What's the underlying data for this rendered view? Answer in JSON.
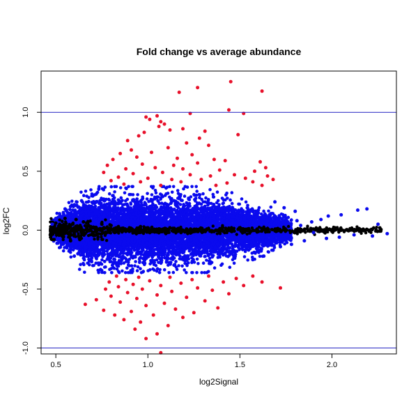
{
  "chart_data": {
    "type": "scatter",
    "title": "Fold change vs average abundance",
    "xlabel": "log2Signal",
    "ylabel": "log2FC",
    "xlim": [
      0.42,
      2.35
    ],
    "ylim": [
      -1.05,
      1.35
    ],
    "xticks": [
      {
        "value": 0.5,
        "label": "0.5"
      },
      {
        "value": 1.0,
        "label": "1.0"
      },
      {
        "value": 1.5,
        "label": "1.5"
      },
      {
        "value": 2.0,
        "label": "2.0"
      }
    ],
    "yticks": [
      {
        "value": -1.0,
        "label": "-1.0"
      },
      {
        "value": -0.5,
        "label": "-0.5"
      },
      {
        "value": 0.0,
        "label": "0.0"
      },
      {
        "value": 0.5,
        "label": "0.5"
      },
      {
        "value": 1.0,
        "label": "1.0"
      }
    ],
    "reference_lines": [
      {
        "axis": "y",
        "value": 1.0,
        "color": "#2020c0"
      },
      {
        "axis": "y",
        "value": -1.0,
        "color": "#2020c0"
      }
    ],
    "grid": false,
    "legend": "none",
    "series": [
      {
        "color": "#e8102a",
        "points": [
          [
            1.17,
            1.17
          ],
          [
            1.27,
            1.21
          ],
          [
            1.45,
            1.26
          ],
          [
            1.62,
            1.18
          ],
          [
            1.44,
            1.02
          ],
          [
            1.52,
            0.99
          ],
          [
            1.23,
            0.99
          ],
          [
            1.05,
            0.97
          ],
          [
            0.99,
            0.96
          ],
          [
            1.01,
            0.94
          ],
          [
            1.07,
            0.92
          ],
          [
            1.09,
            0.9
          ],
          [
            1.06,
            0.88
          ],
          [
            1.12,
            0.85
          ],
          [
            0.98,
            0.83
          ],
          [
            1.19,
            0.86
          ],
          [
            1.31,
            0.84
          ],
          [
            1.49,
            0.81
          ],
          [
            0.95,
            0.8
          ],
          [
            1.28,
            0.78
          ],
          [
            0.89,
            0.76
          ],
          [
            1.21,
            0.74
          ],
          [
            1.33,
            0.72
          ],
          [
            1.11,
            0.7
          ],
          [
            0.91,
            0.68
          ],
          [
            0.85,
            0.65
          ],
          [
            1.02,
            0.66
          ],
          [
            1.24,
            0.64
          ],
          [
            0.94,
            0.62
          ],
          [
            1.16,
            0.61
          ],
          [
            0.81,
            0.6
          ],
          [
            1.36,
            0.6
          ],
          [
            1.42,
            0.59
          ],
          [
            1.61,
            0.58
          ],
          [
            1.64,
            0.53
          ],
          [
            0.78,
            0.55
          ],
          [
            0.97,
            0.56
          ],
          [
            1.14,
            0.55
          ],
          [
            1.27,
            0.57
          ],
          [
            0.88,
            0.52
          ],
          [
            1.04,
            0.53
          ],
          [
            1.19,
            0.52
          ],
          [
            1.39,
            0.51
          ],
          [
            1.58,
            0.5
          ],
          [
            0.76,
            0.49
          ],
          [
            0.92,
            0.48
          ],
          [
            1.08,
            0.49
          ],
          [
            1.23,
            0.47
          ],
          [
            1.34,
            0.46
          ],
          [
            1.47,
            0.47
          ],
          [
            1.65,
            0.46
          ],
          [
            0.84,
            0.45
          ],
          [
            1.0,
            0.44
          ],
          [
            1.13,
            0.43
          ],
          [
            1.29,
            0.43
          ],
          [
            1.53,
            0.44
          ],
          [
            1.68,
            0.43
          ],
          [
            0.8,
            0.42
          ],
          [
            0.96,
            0.41
          ],
          [
            1.18,
            0.41
          ],
          [
            1.43,
            0.4
          ],
          [
            1.57,
            0.41
          ],
          [
            0.87,
            0.39
          ],
          [
            1.07,
            0.38
          ],
          [
            1.37,
            0.38
          ],
          [
            1.62,
            0.38
          ],
          [
            1.07,
            -1.04
          ],
          [
            0.99,
            -0.92
          ],
          [
            1.05,
            -0.88
          ],
          [
            0.93,
            -0.84
          ],
          [
            1.11,
            -0.81
          ],
          [
            0.96,
            -0.78
          ],
          [
            0.87,
            -0.76
          ],
          [
            1.19,
            -0.74
          ],
          [
            1.03,
            -0.72
          ],
          [
            0.82,
            -0.72
          ],
          [
            1.25,
            -0.7
          ],
          [
            0.91,
            -0.69
          ],
          [
            0.76,
            -0.68
          ],
          [
            1.15,
            -0.67
          ],
          [
            1.38,
            -0.66
          ],
          [
            0.66,
            -0.63
          ],
          [
            0.99,
            -0.64
          ],
          [
            1.09,
            -0.62
          ],
          [
            0.85,
            -0.61
          ],
          [
            1.31,
            -0.6
          ],
          [
            0.72,
            -0.59
          ],
          [
            0.94,
            -0.58
          ],
          [
            1.21,
            -0.57
          ],
          [
            0.8,
            -0.56
          ],
          [
            1.05,
            -0.55
          ],
          [
            1.44,
            -0.54
          ],
          [
            0.89,
            -0.53
          ],
          [
            1.13,
            -0.52
          ],
          [
            1.35,
            -0.51
          ],
          [
            0.77,
            -0.5
          ],
          [
            0.97,
            -0.5
          ],
          [
            1.27,
            -0.49
          ],
          [
            1.72,
            -0.49
          ],
          [
            0.84,
            -0.48
          ],
          [
            1.07,
            -0.47
          ],
          [
            1.52,
            -0.47
          ],
          [
            0.92,
            -0.46
          ],
          [
            1.18,
            -0.45
          ],
          [
            1.41,
            -0.44
          ],
          [
            0.79,
            -0.44
          ],
          [
            1.01,
            -0.43
          ],
          [
            1.62,
            -0.44
          ],
          [
            0.88,
            -0.42
          ],
          [
            1.24,
            -0.42
          ],
          [
            1.48,
            -0.41
          ],
          [
            0.95,
            -0.4
          ],
          [
            1.12,
            -0.4
          ],
          [
            1.33,
            -0.39
          ],
          [
            0.83,
            -0.39
          ],
          [
            1.57,
            -0.39
          ]
        ]
      },
      {
        "color": "#0a0aee",
        "points": [
          [
            2.19,
            0.18
          ],
          [
            2.14,
            0.17
          ],
          [
            2.05,
            0.13
          ],
          [
            1.98,
            0.12
          ],
          [
            1.94,
            0.09
          ],
          [
            2.25,
            0.05
          ],
          [
            1.89,
            0.07
          ],
          [
            2.3,
            -0.03
          ],
          [
            2.22,
            -0.05
          ],
          [
            2.12,
            -0.04
          ],
          [
            2.04,
            -0.06
          ],
          [
            1.97,
            -0.07
          ],
          [
            1.85,
            -0.09
          ],
          [
            1.78,
            -0.12
          ],
          [
            1.72,
            -0.14
          ],
          [
            1.68,
            -0.17
          ],
          [
            1.63,
            -0.22
          ],
          [
            1.57,
            -0.25
          ],
          [
            1.69,
            0.24
          ],
          [
            1.74,
            0.19
          ],
          [
            1.8,
            0.16
          ],
          [
            0.55,
            0.18
          ],
          [
            0.52,
            0.14
          ],
          [
            0.5,
            0.1
          ],
          [
            0.56,
            -0.15
          ],
          [
            0.53,
            -0.11
          ],
          [
            0.6,
            -0.22
          ],
          [
            0.64,
            0.25
          ],
          [
            0.7,
            0.29
          ],
          [
            1.75,
            0.09
          ],
          [
            1.83,
            0.04
          ],
          [
            1.9,
            -0.02
          ],
          [
            1.81,
            0.08
          ],
          [
            1.66,
            0.13
          ],
          [
            1.6,
            0.17
          ],
          [
            0.48,
            0.05
          ],
          [
            0.49,
            -0.06
          ],
          [
            0.58,
            0.2
          ],
          [
            0.62,
            -0.2
          ]
        ]
      },
      {
        "color": "#000000",
        "points": [
          [
            0.47,
            -0.04
          ],
          [
            0.48,
            0.02
          ],
          [
            0.49,
            -0.08
          ],
          [
            0.5,
            0.06
          ],
          [
            0.52,
            -0.02
          ],
          [
            0.53,
            0.04
          ],
          [
            0.54,
            -0.06
          ],
          [
            0.56,
            0.03
          ],
          [
            0.57,
            -0.03
          ],
          [
            0.59,
            0.05
          ],
          [
            0.6,
            -0.05
          ],
          [
            0.62,
            0.02
          ],
          [
            0.64,
            -0.02
          ],
          [
            0.65,
            0.07
          ],
          [
            0.67,
            -0.01
          ],
          [
            0.69,
            0.03
          ],
          [
            0.7,
            -0.04
          ],
          [
            0.72,
            0.02
          ],
          [
            0.74,
            0.0
          ],
          [
            0.75,
            0.05
          ],
          [
            0.77,
            -0.03
          ],
          [
            0.79,
            0.01
          ],
          [
            0.8,
            0.04
          ],
          [
            0.82,
            -0.02
          ],
          [
            0.84,
            0.03
          ],
          [
            0.86,
            0.01
          ],
          [
            0.88,
            -0.01
          ],
          [
            0.9,
            0.02
          ],
          [
            0.92,
            -0.02
          ],
          [
            0.94,
            0.01
          ],
          [
            0.96,
            0.03
          ],
          [
            0.98,
            -0.01
          ],
          [
            1.0,
            0.02
          ],
          [
            1.03,
            0.0
          ],
          [
            1.06,
            -0.02
          ],
          [
            1.09,
            0.01
          ],
          [
            1.12,
            0.02
          ],
          [
            1.15,
            0.0
          ],
          [
            1.18,
            -0.02
          ],
          [
            1.21,
            0.01
          ],
          [
            1.25,
            0.0
          ],
          [
            1.29,
            -0.01
          ],
          [
            1.33,
            0.01
          ],
          [
            1.37,
            0.0
          ],
          [
            1.41,
            -0.01
          ],
          [
            1.45,
            0.0
          ],
          [
            1.5,
            0.01
          ],
          [
            1.55,
            0.0
          ],
          [
            1.6,
            -0.01
          ],
          [
            1.65,
            0.0
          ],
          [
            1.7,
            0.01
          ],
          [
            1.75,
            0.0
          ],
          [
            1.8,
            -0.01
          ],
          [
            1.85,
            0.0
          ],
          [
            1.9,
            0.01
          ],
          [
            1.95,
            0.0
          ],
          [
            2.0,
            -0.01
          ],
          [
            2.05,
            0.0
          ],
          [
            2.1,
            0.0
          ],
          [
            2.2,
            0.0
          ],
          [
            2.26,
            0.02
          ],
          [
            0.55,
            0.1
          ],
          [
            0.58,
            -0.09
          ],
          [
            0.61,
            0.09
          ],
          [
            0.63,
            -0.08
          ]
        ]
      }
    ]
  }
}
